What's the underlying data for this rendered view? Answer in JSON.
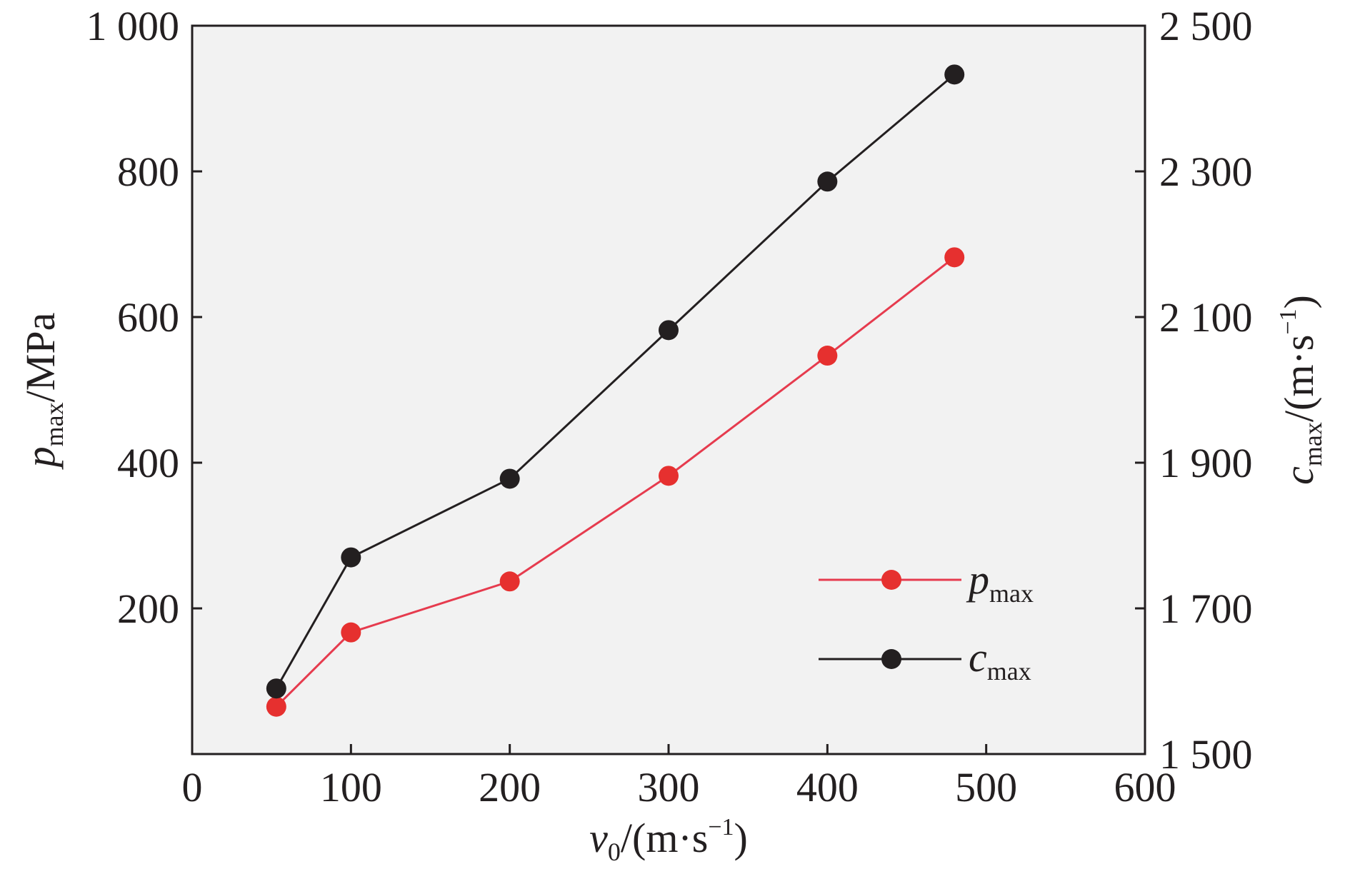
{
  "chart_data": {
    "type": "line",
    "x": [
      53,
      100,
      200,
      300,
      400,
      480
    ],
    "xlim": [
      0,
      600
    ],
    "xticks": [
      0,
      100,
      200,
      300,
      400,
      500,
      600
    ],
    "xlabel": {
      "symbol": "v",
      "subscript": "0",
      "unit_open": "/(m·s",
      "superscript": "−1",
      "unit_close": ")"
    },
    "y_left": {
      "lim": [
        0,
        1000
      ],
      "ticks": [
        200,
        400,
        600,
        800,
        1000
      ],
      "tick_labels": [
        "200",
        "400",
        "600",
        "800",
        "1 000"
      ],
      "label": {
        "symbol": "p",
        "subscript": "max",
        "unit": "/MPa"
      }
    },
    "y_right": {
      "lim": [
        1500,
        2500
      ],
      "ticks": [
        1500,
        1700,
        1900,
        2100,
        2300,
        2500
      ],
      "tick_labels": [
        "1 500",
        "1 700",
        "1 900",
        "2 100",
        "2 300",
        "2 500"
      ],
      "label": {
        "symbol": "c",
        "subscript": "max",
        "unit_open": "/(m·s",
        "superscript": "−1",
        "unit_close": ")"
      }
    },
    "series": [
      {
        "name": "p",
        "name_subscript": "max",
        "axis": "left",
        "values": [
          65,
          167,
          237,
          382,
          547,
          682
        ],
        "marker_color": "#e6302f",
        "line_color": "#e63b4e"
      },
      {
        "name": "c",
        "name_subscript": "max",
        "axis": "right",
        "values": [
          1590,
          1770,
          1878,
          2082,
          2286,
          2433
        ],
        "marker_color": "#231f20",
        "line_color": "#231f20"
      }
    ],
    "legend_position": "bottom-right",
    "grid": false
  }
}
